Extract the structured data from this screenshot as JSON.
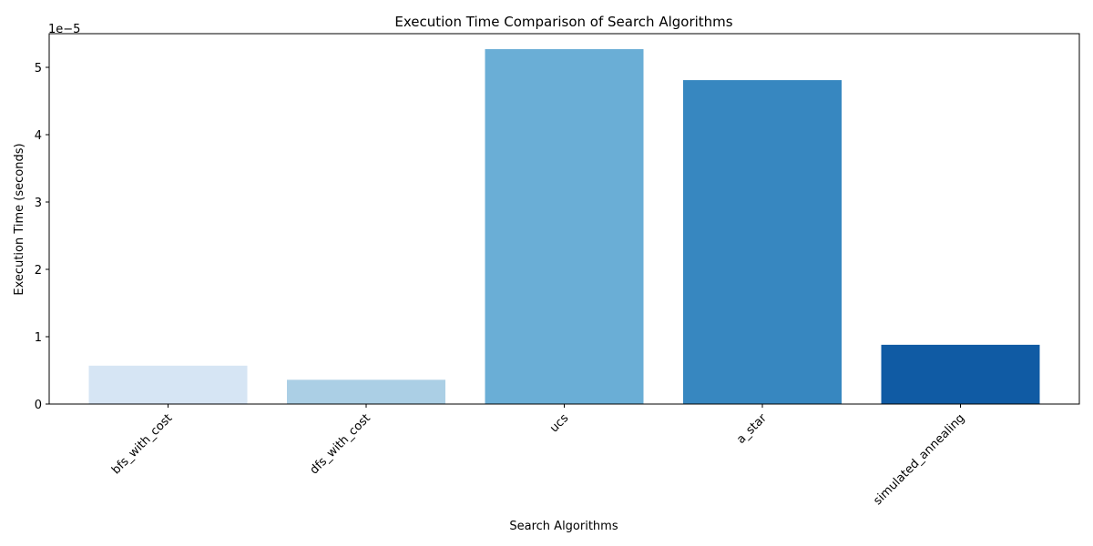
{
  "chart_data": {
    "type": "bar",
    "title": "Execution Time Comparison of Search Algorithms",
    "xlabel": "Search Algorithms",
    "ylabel": "Execution Time (seconds)",
    "offset_label": "1e−5",
    "categories": [
      "bfs_with_cost",
      "dfs_with_cost",
      "ucs",
      "a_star",
      "simulated_annealing"
    ],
    "values": [
      5.7e-06,
      3.6e-06,
      5.27e-05,
      4.81e-05,
      8.8e-06
    ],
    "colors": [
      "#d6e5f4",
      "#abcfe5",
      "#6aaed6",
      "#3787c0",
      "#105ba4"
    ],
    "ylim": [
      0,
      5.5e-05
    ],
    "yticks": [
      0,
      1e-05,
      2e-05,
      3e-05,
      4e-05,
      5e-05
    ],
    "ytick_labels": [
      "0",
      "1",
      "2",
      "3",
      "4",
      "5"
    ],
    "grid": false,
    "legend": false
  }
}
